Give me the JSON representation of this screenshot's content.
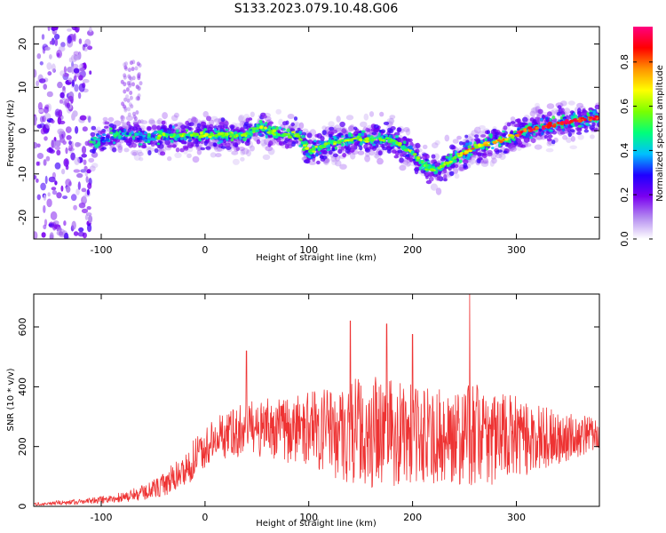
{
  "figure": {
    "title": "S133.2023.079.10.48.G06"
  },
  "chart_data": [
    {
      "type": "heatmap",
      "panel": "top",
      "xlabel": "Height of straight line (km)",
      "ylabel": "Frequency (Hz)",
      "xlim": [
        -165,
        380
      ],
      "ylim": [
        -25,
        24
      ],
      "x_ticks": [
        -100,
        0,
        100,
        200,
        300
      ],
      "x_tick_labels": [
        "-100",
        "0",
        "100",
        "200",
        "300"
      ],
      "y_ticks": [
        -20,
        -10,
        0,
        10,
        20
      ],
      "y_tick_labels": [
        "-20",
        "-10",
        "0",
        "10",
        "20"
      ],
      "ridge": {
        "name": "",
        "x": [
          -110,
          -90,
          -70,
          -50,
          -40,
          -20,
          0,
          20,
          40,
          55,
          70,
          90,
          100,
          120,
          140,
          160,
          180,
          200,
          210,
          220,
          230,
          250,
          270,
          290,
          310,
          330,
          350,
          380
        ],
        "y": [
          -3,
          -1,
          -1,
          -2,
          -1,
          -1,
          -1,
          -1,
          -1,
          1,
          -1,
          -1,
          -5,
          -3,
          -2,
          -2,
          -2,
          -5,
          -8,
          -9,
          -8,
          -5,
          -3,
          -2,
          0,
          1,
          2,
          3
        ]
      },
      "noise_region_x": [
        -165,
        -120
      ],
      "colorbar": {
        "label": "Normalized spectral amplitude",
        "range": [
          0,
          0.96
        ],
        "ticks": [
          0.0,
          0.2,
          0.4,
          0.6,
          0.8
        ],
        "tick_labels": [
          "0.0",
          "0.2",
          "0.4",
          "0.6",
          "0.8"
        ],
        "colormap": [
          "#ffffff",
          "#b48cf0",
          "#7a00f0",
          "#1f00ff",
          "#00bfff",
          "#00ff7a",
          "#7aff00",
          "#ffff00",
          "#ff9400",
          "#ff0000",
          "#ff0080"
        ]
      },
      "grid": false
    },
    {
      "type": "line",
      "panel": "bottom",
      "xlabel": "Height of straight line (km)",
      "ylabel": "SNR (10 * v/v)",
      "xlim": [
        -165,
        380
      ],
      "ylim": [
        0,
        710
      ],
      "x_ticks": [
        -100,
        0,
        100,
        200,
        300
      ],
      "x_tick_labels": [
        "-100",
        "0",
        "100",
        "200",
        "300"
      ],
      "y_ticks": [
        0,
        200,
        400,
        600
      ],
      "y_tick_labels": [
        "0",
        "200",
        "400",
        "600"
      ],
      "series": [
        {
          "name": "",
          "color": "#ee3333",
          "envelope_x": [
            -165,
            -140,
            -110,
            -80,
            -60,
            -40,
            -20,
            0,
            20,
            40,
            60,
            80,
            100,
            120,
            140,
            160,
            180,
            200,
            220,
            240,
            260,
            280,
            300,
            320,
            340,
            360,
            380
          ],
          "envelope_mean": [
            8,
            12,
            18,
            30,
            45,
            70,
            120,
            200,
            240,
            260,
            260,
            255,
            260,
            255,
            250,
            250,
            245,
            240,
            235,
            235,
            240,
            230,
            230,
            230,
            230,
            235,
            245
          ],
          "envelope_spread": [
            5,
            8,
            10,
            18,
            25,
            40,
            60,
            70,
            80,
            90,
            100,
            110,
            120,
            150,
            180,
            190,
            180,
            170,
            160,
            160,
            170,
            160,
            140,
            110,
            90,
            70,
            50
          ],
          "peaks": [
            [
              40,
              520
            ],
            [
              140,
              620
            ],
            [
              175,
              610
            ],
            [
              200,
              575
            ],
            [
              255,
              710
            ]
          ]
        }
      ],
      "grid": false
    }
  ]
}
